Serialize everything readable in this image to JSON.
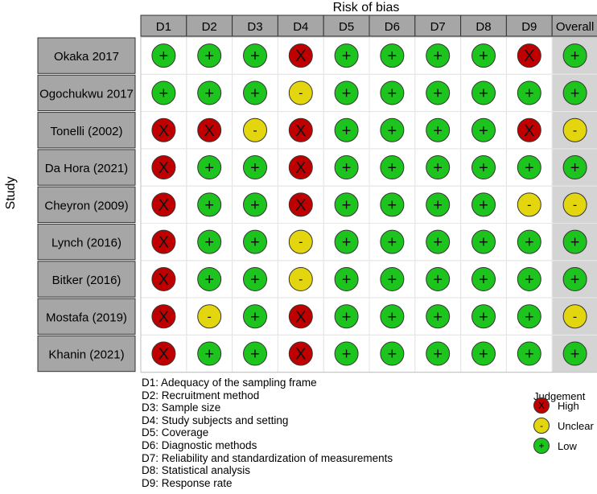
{
  "chart_data": {
    "type": "table",
    "title": "Risk of bias",
    "ylabel": "Study",
    "domains": [
      "D1",
      "D2",
      "D3",
      "D4",
      "D5",
      "D6",
      "D7",
      "D8",
      "D9",
      "Overall"
    ],
    "studies": [
      {
        "name": "Okaka 2017",
        "judgements": [
          "Low",
          "Low",
          "Low",
          "High",
          "Low",
          "Low",
          "Low",
          "Low",
          "High",
          "Low"
        ]
      },
      {
        "name": "Ogochukwu 2017",
        "judgements": [
          "Low",
          "Low",
          "Low",
          "Unclear",
          "Low",
          "Low",
          "Low",
          "Low",
          "Low",
          "Low"
        ]
      },
      {
        "name": "Tonelli (2002)",
        "judgements": [
          "High",
          "High",
          "Unclear",
          "High",
          "Low",
          "Low",
          "Low",
          "Low",
          "High",
          "Unclear"
        ]
      },
      {
        "name": "Da Hora (2021)",
        "judgements": [
          "High",
          "Low",
          "Low",
          "High",
          "Low",
          "Low",
          "Low",
          "Low",
          "Low",
          "Low"
        ]
      },
      {
        "name": "Cheyron (2009)",
        "judgements": [
          "High",
          "Low",
          "Low",
          "High",
          "Low",
          "Low",
          "Low",
          "Low",
          "Unclear",
          "Unclear"
        ]
      },
      {
        "name": "Lynch (2016)",
        "judgements": [
          "High",
          "Low",
          "Low",
          "Unclear",
          "Low",
          "Low",
          "Low",
          "Low",
          "Low",
          "Low"
        ]
      },
      {
        "name": "Bitker (2016)",
        "judgements": [
          "High",
          "Low",
          "Low",
          "Unclear",
          "Low",
          "Low",
          "Low",
          "Low",
          "Low",
          "Low"
        ]
      },
      {
        "name": "Mostafa (2019)",
        "judgements": [
          "High",
          "Unclear",
          "Low",
          "High",
          "Low",
          "Low",
          "Low",
          "Low",
          "Low",
          "Unclear"
        ]
      },
      {
        "name": "Khanin (2021)",
        "judgements": [
          "High",
          "Low",
          "Low",
          "High",
          "Low",
          "Low",
          "Low",
          "Low",
          "Low",
          "Low"
        ]
      }
    ],
    "domain_descriptions": [
      "D1: Adequacy of the sampling frame",
      "D2: Recruitment method",
      "D3: Sample size",
      "D4: Study subjects and setting",
      "D5: Coverage",
      "D6: Diagnostic methods",
      "D7: Reliability and standardization of measurements",
      "D8: Statistical analysis",
      "D9: Response rate"
    ],
    "legend": {
      "title": "Judgement",
      "items": [
        {
          "label": "High",
          "symbol": "X",
          "color": "#c00000"
        },
        {
          "label": "Unclear",
          "symbol": "-",
          "color": "#e3d60f"
        },
        {
          "label": "Low",
          "symbol": "+",
          "color": "#1ec41e"
        }
      ]
    }
  }
}
